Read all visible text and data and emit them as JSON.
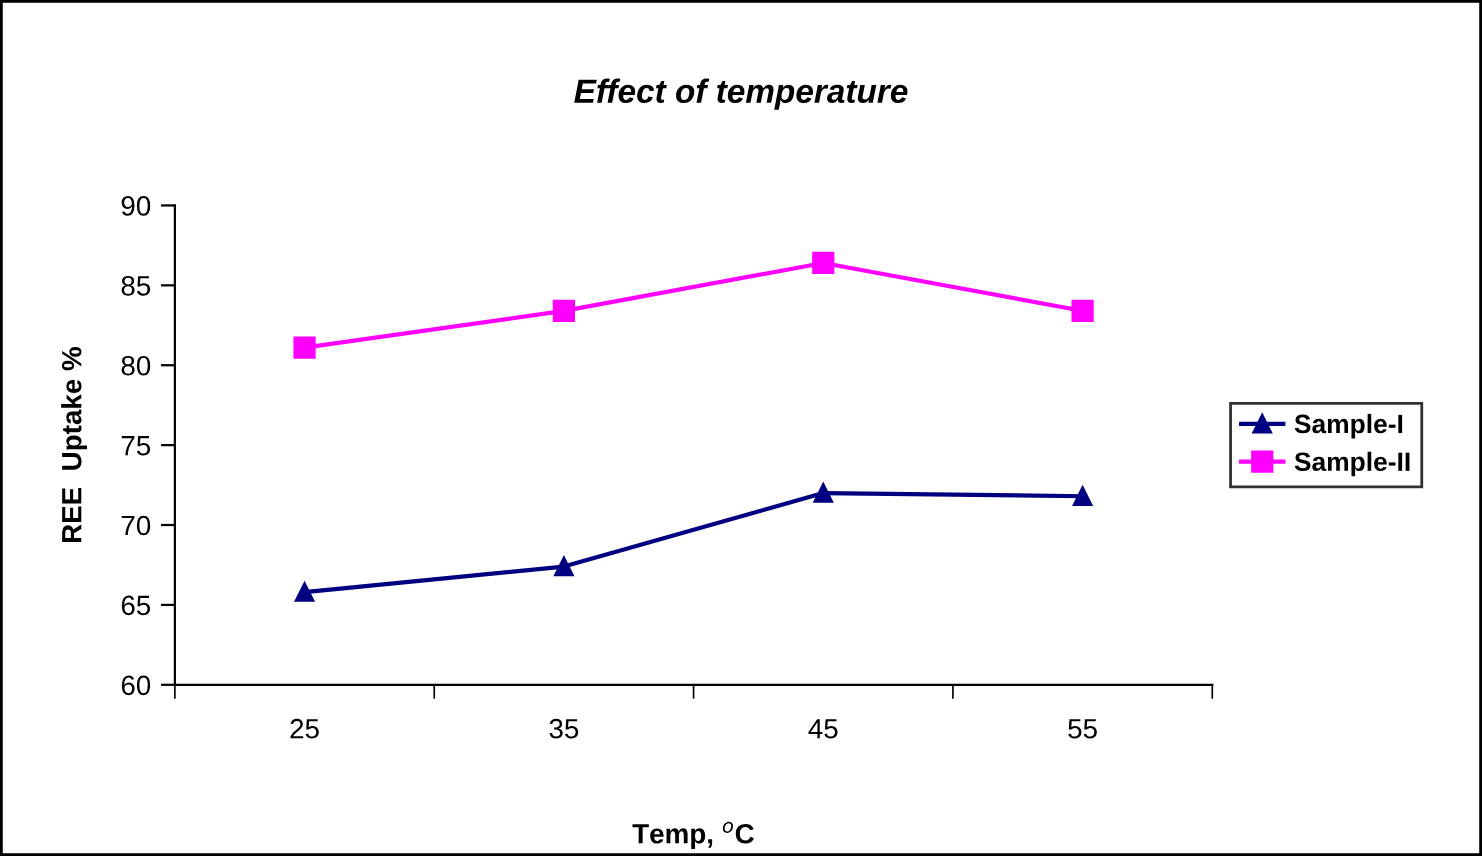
{
  "chart_data": {
    "type": "line",
    "title": "Effect of temperature",
    "xlabel": "Temp, $^{o}$C",
    "ylabel": "REE  Uptake %",
    "categories": [
      "25",
      "35",
      "45",
      "55"
    ],
    "series": [
      {
        "name": "Sample-I",
        "color": "#000080",
        "marker": "triangle",
        "values": [
          65.8,
          67.4,
          72.0,
          71.8
        ]
      },
      {
        "name": "Sample-II",
        "color": "#ff00ff",
        "marker": "square",
        "values": [
          81.1,
          83.4,
          86.4,
          83.4
        ]
      }
    ],
    "ylim": [
      60,
      90
    ],
    "yticks": [
      60,
      65,
      70,
      75,
      80,
      85,
      90
    ],
    "grid": false,
    "legend": "right"
  }
}
